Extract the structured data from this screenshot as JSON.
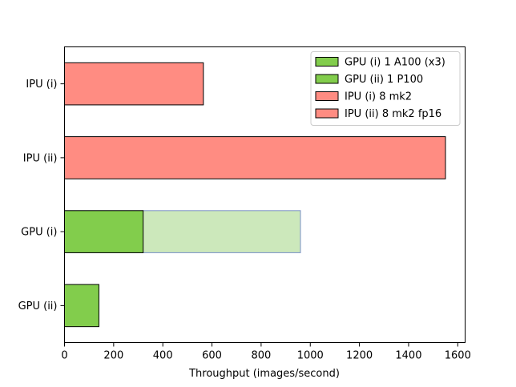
{
  "chart_data": {
    "type": "bar",
    "orientation": "horizontal",
    "title": "",
    "xlabel": "Throughput (images/second)",
    "ylabel": "",
    "xlim": [
      0,
      1630
    ],
    "xticks": [
      0,
      200,
      400,
      600,
      800,
      1000,
      1200,
      1400,
      1600
    ],
    "grid": false,
    "legend_position": "top-right",
    "categories": [
      "IPU (i)",
      "IPU (ii)",
      "GPU (i)",
      "GPU (ii)"
    ],
    "bars": [
      {
        "category": "IPU (i)",
        "value": 565,
        "color": "#ff8c82",
        "edge": "#000000"
      },
      {
        "category": "IPU (ii)",
        "value": 1550,
        "color": "#ff8c82",
        "edge": "#000000"
      },
      {
        "category": "GPU (i)",
        "value": 960,
        "color": "#cce8bb",
        "edge": "#7a90c8",
        "note": "x3"
      },
      {
        "category": "GPU (i)",
        "value": 320,
        "color": "#82cd4c",
        "edge": "#000000"
      },
      {
        "category": "GPU (ii)",
        "value": 140,
        "color": "#82cd4c",
        "edge": "#000000"
      }
    ],
    "legend": [
      {
        "label": "GPU (i) 1 A100 (x3)",
        "color": "#82cd4c"
      },
      {
        "label": "GPU (ii) 1 P100",
        "color": "#82cd4c"
      },
      {
        "label": "IPU (i) 8 mk2",
        "color": "#ff8c82"
      },
      {
        "label": "IPU (ii) 8 mk2 fp16",
        "color": "#ff8c82"
      }
    ]
  }
}
